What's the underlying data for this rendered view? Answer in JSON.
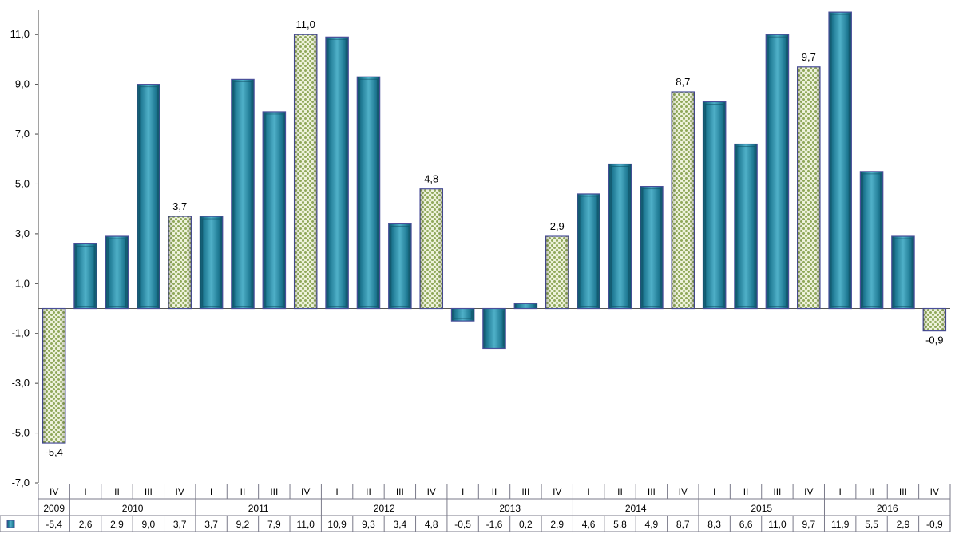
{
  "chart_data": {
    "type": "bar",
    "categories": [
      "IV",
      "I",
      "II",
      "III",
      "IV",
      "I",
      "II",
      "III",
      "IV",
      "I",
      "II",
      "III",
      "IV",
      "I",
      "II",
      "III",
      "IV",
      "I",
      "II",
      "III",
      "IV",
      "I",
      "II",
      "III",
      "IV",
      "I",
      "II",
      "III",
      "IV"
    ],
    "years": [
      {
        "label": "2009",
        "count": 1
      },
      {
        "label": "2010",
        "count": 4
      },
      {
        "label": "2011",
        "count": 4
      },
      {
        "label": "2012",
        "count": 4
      },
      {
        "label": "2013",
        "count": 4
      },
      {
        "label": "2014",
        "count": 4
      },
      {
        "label": "2015",
        "count": 4
      },
      {
        "label": "2016",
        "count": 4
      }
    ],
    "values": [
      -5.4,
      2.6,
      2.9,
      9.0,
      3.7,
      3.7,
      9.2,
      7.9,
      11.0,
      10.9,
      9.3,
      3.4,
      4.8,
      -0.5,
      -1.6,
      0.2,
      2.9,
      4.6,
      5.8,
      4.9,
      8.7,
      8.3,
      6.6,
      11.0,
      9.7,
      11.9,
      5.5,
      2.9,
      -0.9
    ],
    "value_labels": [
      "-5,4",
      "2,6",
      "2,9",
      "9,0",
      "3,7",
      "3,7",
      "9,2",
      "7,9",
      "11,0",
      "10,9",
      "9,3",
      "3,4",
      "4,8",
      "-0,5",
      "-1,6",
      "0,2",
      "2,9",
      "4,6",
      "5,8",
      "4,9",
      "8,7",
      "8,3",
      "6,6",
      "11,0",
      "9,7",
      "11,9",
      "5,5",
      "2,9",
      "-0,9"
    ],
    "highlighted": [
      true,
      false,
      false,
      false,
      true,
      false,
      false,
      false,
      true,
      false,
      false,
      false,
      true,
      false,
      false,
      false,
      true,
      false,
      false,
      false,
      true,
      false,
      false,
      false,
      true,
      false,
      false,
      false,
      true
    ],
    "ylim": [
      -7.0,
      12.0
    ],
    "yticks": [
      -7.0,
      -5.0,
      -3.0,
      -1.0,
      1.0,
      3.0,
      5.0,
      7.0,
      9.0,
      11.0
    ],
    "ytick_labels": [
      "-7,0",
      "-5,0",
      "-3,0",
      "-1,0",
      "1,0",
      "3,0",
      "5,0",
      "7,0",
      "9,0",
      "11,0"
    ],
    "grid": false,
    "data_table": true,
    "colors": {
      "bar": "#1f7a94",
      "bar_light": "#4fb0c8",
      "bar_dark": "#0e4f63",
      "bar_border": "#4a4f9a",
      "pattern_base": "#eef2dc",
      "pattern_dot": "#8fa85a"
    }
  }
}
